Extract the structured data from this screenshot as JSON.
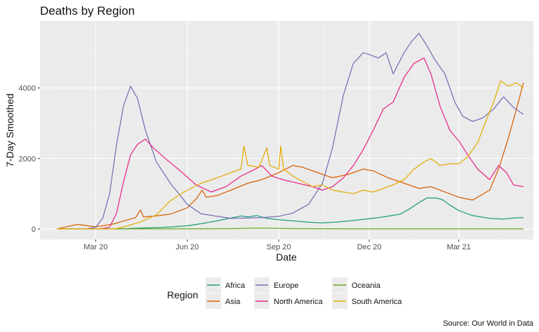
{
  "chart_data": {
    "type": "line",
    "title": "Deaths by Region",
    "xlabel": "Date",
    "ylabel": "7-Day Smoothed",
    "caption": "Source:  Our World in Data",
    "legend_title": "Region",
    "legend_position": "bottom",
    "grid": true,
    "xlim": [
      "2020-01-05",
      "2021-05-15"
    ],
    "ylim": [
      -300,
      5900
    ],
    "x_ticks": [
      {
        "date": "2020-03-01",
        "label": "Mar 20"
      },
      {
        "date": "2020-06-01",
        "label": "Jun 20"
      },
      {
        "date": "2020-09-01",
        "label": "Sep 20"
      },
      {
        "date": "2020-12-01",
        "label": "Dec 20"
      },
      {
        "date": "2021-03-01",
        "label": "Mar 21"
      }
    ],
    "y_ticks": [
      0,
      2000,
      4000
    ],
    "series": [
      {
        "name": "Africa",
        "color": "#1b9e77",
        "points": [
          [
            "2020-01-22",
            0
          ],
          [
            "2020-03-15",
            2
          ],
          [
            "2020-04-01",
            10
          ],
          [
            "2020-04-15",
            25
          ],
          [
            "2020-05-01",
            40
          ],
          [
            "2020-05-15",
            55
          ],
          [
            "2020-06-01",
            90
          ],
          [
            "2020-06-15",
            150
          ],
          [
            "2020-07-01",
            230
          ],
          [
            "2020-07-15",
            310
          ],
          [
            "2020-07-25",
            370
          ],
          [
            "2020-08-01",
            340
          ],
          [
            "2020-08-10",
            380
          ],
          [
            "2020-08-20",
            300
          ],
          [
            "2020-09-01",
            260
          ],
          [
            "2020-09-15",
            230
          ],
          [
            "2020-10-01",
            190
          ],
          [
            "2020-10-15",
            170
          ],
          [
            "2020-11-01",
            200
          ],
          [
            "2020-11-15",
            240
          ],
          [
            "2020-12-01",
            290
          ],
          [
            "2020-12-15",
            340
          ],
          [
            "2021-01-01",
            420
          ],
          [
            "2021-01-10",
            560
          ],
          [
            "2021-01-20",
            750
          ],
          [
            "2021-01-28",
            880
          ],
          [
            "2021-02-05",
            880
          ],
          [
            "2021-02-12",
            840
          ],
          [
            "2021-02-20",
            680
          ],
          [
            "2021-03-01",
            520
          ],
          [
            "2021-03-15",
            380
          ],
          [
            "2021-04-01",
            300
          ],
          [
            "2021-04-15",
            280
          ],
          [
            "2021-04-25",
            310
          ],
          [
            "2021-05-05",
            320
          ]
        ]
      },
      {
        "name": "Asia",
        "color": "#d95f02",
        "points": [
          [
            "2020-01-22",
            0
          ],
          [
            "2020-01-28",
            40
          ],
          [
            "2020-02-05",
            90
          ],
          [
            "2020-02-12",
            130
          ],
          [
            "2020-02-20",
            100
          ],
          [
            "2020-03-01",
            60
          ],
          [
            "2020-03-10",
            100
          ],
          [
            "2020-03-20",
            150
          ],
          [
            "2020-04-01",
            250
          ],
          [
            "2020-04-10",
            320
          ],
          [
            "2020-04-15",
            540
          ],
          [
            "2020-04-18",
            340
          ],
          [
            "2020-05-01",
            370
          ],
          [
            "2020-05-15",
            420
          ],
          [
            "2020-06-01",
            600
          ],
          [
            "2020-06-10",
            850
          ],
          [
            "2020-06-16",
            1100
          ],
          [
            "2020-06-20",
            900
          ],
          [
            "2020-07-01",
            950
          ],
          [
            "2020-07-15",
            1100
          ],
          [
            "2020-08-01",
            1300
          ],
          [
            "2020-08-15",
            1400
          ],
          [
            "2020-09-01",
            1600
          ],
          [
            "2020-09-15",
            1800
          ],
          [
            "2020-09-25",
            1750
          ],
          [
            "2020-10-10",
            1600
          ],
          [
            "2020-10-25",
            1450
          ],
          [
            "2020-11-10",
            1550
          ],
          [
            "2020-11-25",
            1700
          ],
          [
            "2020-12-05",
            1650
          ],
          [
            "2020-12-20",
            1450
          ],
          [
            "2021-01-05",
            1300
          ],
          [
            "2021-01-20",
            1150
          ],
          [
            "2021-02-01",
            1200
          ],
          [
            "2021-02-15",
            1050
          ],
          [
            "2021-03-01",
            900
          ],
          [
            "2021-03-15",
            820
          ],
          [
            "2021-04-01",
            1100
          ],
          [
            "2021-04-10",
            1700
          ],
          [
            "2021-04-20",
            2600
          ],
          [
            "2021-04-28",
            3400
          ],
          [
            "2021-05-05",
            4150
          ]
        ]
      },
      {
        "name": "Europe",
        "color": "#7570b3",
        "points": [
          [
            "2020-01-22",
            0
          ],
          [
            "2020-02-20",
            0
          ],
          [
            "2020-03-01",
            50
          ],
          [
            "2020-03-08",
            300
          ],
          [
            "2020-03-15",
            1000
          ],
          [
            "2020-03-22",
            2400
          ],
          [
            "2020-03-29",
            3500
          ],
          [
            "2020-04-05",
            4050
          ],
          [
            "2020-04-12",
            3700
          ],
          [
            "2020-04-20",
            2800
          ],
          [
            "2020-05-01",
            1900
          ],
          [
            "2020-05-15",
            1300
          ],
          [
            "2020-06-01",
            700
          ],
          [
            "2020-06-15",
            430
          ],
          [
            "2020-07-01",
            360
          ],
          [
            "2020-07-15",
            300
          ],
          [
            "2020-08-01",
            310
          ],
          [
            "2020-08-15",
            320
          ],
          [
            "2020-09-01",
            360
          ],
          [
            "2020-09-15",
            450
          ],
          [
            "2020-10-01",
            700
          ],
          [
            "2020-10-15",
            1300
          ],
          [
            "2020-10-25",
            2300
          ],
          [
            "2020-11-05",
            3800
          ],
          [
            "2020-11-15",
            4700
          ],
          [
            "2020-11-25",
            5000
          ],
          [
            "2020-12-01",
            4950
          ],
          [
            "2020-12-10",
            4850
          ],
          [
            "2020-12-18",
            5000
          ],
          [
            "2020-12-25",
            4400
          ],
          [
            "2021-01-05",
            5000
          ],
          [
            "2021-01-12",
            5300
          ],
          [
            "2021-01-20",
            5550
          ],
          [
            "2021-01-28",
            5200
          ],
          [
            "2021-02-05",
            4800
          ],
          [
            "2021-02-15",
            4400
          ],
          [
            "2021-02-25",
            3600
          ],
          [
            "2021-03-05",
            3200
          ],
          [
            "2021-03-15",
            3050
          ],
          [
            "2021-03-25",
            3150
          ],
          [
            "2021-04-05",
            3400
          ],
          [
            "2021-04-15",
            3750
          ],
          [
            "2021-04-25",
            3450
          ],
          [
            "2021-05-05",
            3250
          ]
        ]
      },
      {
        "name": "North America",
        "color": "#e7298a",
        "points": [
          [
            "2020-01-22",
            0
          ],
          [
            "2020-03-05",
            0
          ],
          [
            "2020-03-15",
            50
          ],
          [
            "2020-03-22",
            450
          ],
          [
            "2020-03-29",
            1350
          ],
          [
            "2020-04-05",
            2100
          ],
          [
            "2020-04-12",
            2400
          ],
          [
            "2020-04-20",
            2550
          ],
          [
            "2020-04-28",
            2300
          ],
          [
            "2020-05-10",
            2000
          ],
          [
            "2020-05-25",
            1650
          ],
          [
            "2020-06-10",
            1250
          ],
          [
            "2020-06-25",
            1050
          ],
          [
            "2020-07-10",
            1200
          ],
          [
            "2020-07-25",
            1500
          ],
          [
            "2020-08-05",
            1650
          ],
          [
            "2020-08-15",
            1800
          ],
          [
            "2020-08-25",
            1500
          ],
          [
            "2020-09-05",
            1400
          ],
          [
            "2020-09-20",
            1300
          ],
          [
            "2020-10-05",
            1200
          ],
          [
            "2020-10-15",
            1100
          ],
          [
            "2020-10-25",
            1200
          ],
          [
            "2020-11-05",
            1450
          ],
          [
            "2020-11-15",
            1800
          ],
          [
            "2020-11-25",
            2250
          ],
          [
            "2020-12-05",
            2800
          ],
          [
            "2020-12-15",
            3400
          ],
          [
            "2020-12-25",
            3600
          ],
          [
            "2021-01-05",
            4300
          ],
          [
            "2021-01-15",
            4700
          ],
          [
            "2021-01-25",
            4850
          ],
          [
            "2021-02-01",
            4400
          ],
          [
            "2021-02-10",
            3500
          ],
          [
            "2021-02-20",
            2800
          ],
          [
            "2021-03-01",
            2500
          ],
          [
            "2021-03-10",
            2100
          ],
          [
            "2021-03-20",
            1700
          ],
          [
            "2021-04-01",
            1400
          ],
          [
            "2021-04-10",
            1800
          ],
          [
            "2021-04-18",
            1600
          ],
          [
            "2021-04-25",
            1250
          ],
          [
            "2021-05-05",
            1200
          ]
        ]
      },
      {
        "name": "Oceania",
        "color": "#66a61e",
        "points": [
          [
            "2020-01-22",
            0
          ],
          [
            "2020-04-01",
            3
          ],
          [
            "2020-05-01",
            2
          ],
          [
            "2020-07-15",
            8
          ],
          [
            "2020-08-10",
            25
          ],
          [
            "2020-08-25",
            20
          ],
          [
            "2020-09-15",
            8
          ],
          [
            "2020-12-01",
            3
          ],
          [
            "2021-05-05",
            3
          ]
        ]
      },
      {
        "name": "South America",
        "color": "#e6ab02",
        "points": [
          [
            "2020-01-22",
            0
          ],
          [
            "2020-03-20",
            0
          ],
          [
            "2020-04-01",
            80
          ],
          [
            "2020-04-15",
            200
          ],
          [
            "2020-05-01",
            400
          ],
          [
            "2020-05-15",
            800
          ],
          [
            "2020-06-01",
            1100
          ],
          [
            "2020-06-15",
            1300
          ],
          [
            "2020-07-01",
            1450
          ],
          [
            "2020-07-15",
            1600
          ],
          [
            "2020-07-25",
            1700
          ],
          [
            "2020-07-28",
            2350
          ],
          [
            "2020-08-01",
            1800
          ],
          [
            "2020-08-12",
            1750
          ],
          [
            "2020-08-20",
            2300
          ],
          [
            "2020-08-23",
            1800
          ],
          [
            "2020-09-01",
            1700
          ],
          [
            "2020-09-03",
            2350
          ],
          [
            "2020-09-06",
            1700
          ],
          [
            "2020-09-15",
            1500
          ],
          [
            "2020-09-25",
            1350
          ],
          [
            "2020-10-05",
            1200
          ],
          [
            "2020-10-15",
            1250
          ],
          [
            "2020-10-25",
            1100
          ],
          [
            "2020-11-05",
            1050
          ],
          [
            "2020-11-15",
            1000
          ],
          [
            "2020-11-25",
            1100
          ],
          [
            "2020-12-05",
            1050
          ],
          [
            "2020-12-15",
            1150
          ],
          [
            "2020-12-25",
            1250
          ],
          [
            "2021-01-05",
            1400
          ],
          [
            "2021-01-15",
            1700
          ],
          [
            "2021-01-25",
            1900
          ],
          [
            "2021-02-01",
            2000
          ],
          [
            "2021-02-10",
            1800
          ],
          [
            "2021-02-20",
            1850
          ],
          [
            "2021-03-01",
            1850
          ],
          [
            "2021-03-10",
            2050
          ],
          [
            "2021-03-20",
            2450
          ],
          [
            "2021-03-28",
            3050
          ],
          [
            "2021-04-05",
            3600
          ],
          [
            "2021-04-12",
            4200
          ],
          [
            "2021-04-20",
            4050
          ],
          [
            "2021-04-28",
            4150
          ],
          [
            "2021-05-05",
            4000
          ]
        ]
      }
    ]
  }
}
